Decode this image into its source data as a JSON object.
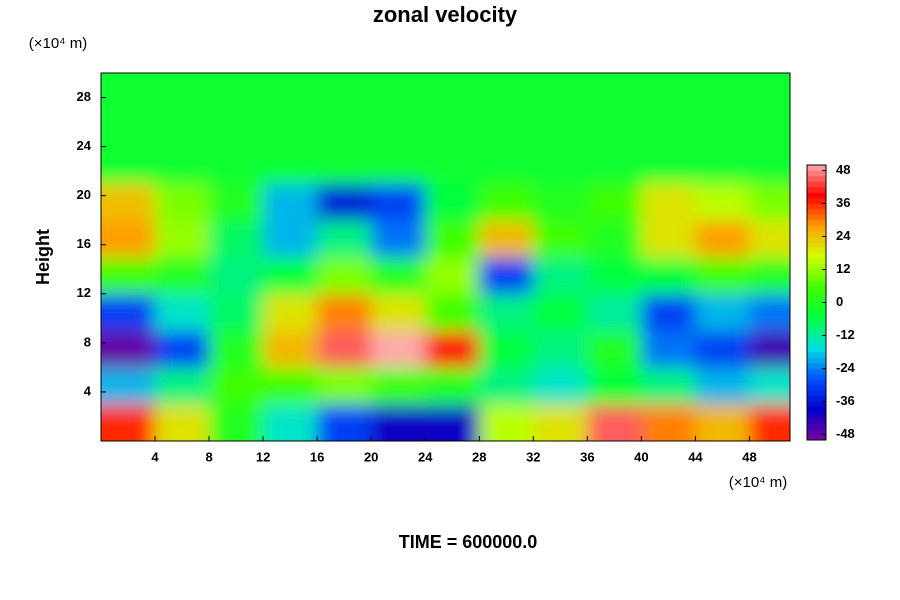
{
  "chart_data": {
    "type": "heatmap",
    "title": "zonal velocity",
    "y_unit": "(×10⁴ m)",
    "x_unit": "(×10⁴ m)",
    "y_label": "Height",
    "footer": "TIME = 600000.0",
    "x": [
      2,
      6,
      10,
      14,
      18,
      22,
      26,
      30,
      34,
      38,
      42,
      46,
      50
    ],
    "y": [
      1.5,
      4.5,
      7.5,
      10.5,
      13.5,
      16.5,
      19.5,
      22.5,
      25.5,
      28.5
    ],
    "z": [
      [
        36,
        20,
        0,
        -15,
        -30,
        -40,
        -40,
        15,
        20,
        45,
        30,
        25,
        36
      ],
      [
        -20,
        -10,
        5,
        5,
        10,
        5,
        0,
        -10,
        -15,
        -5,
        -10,
        -20,
        -15
      ],
      [
        -48,
        -30,
        0,
        25,
        45,
        52,
        40,
        -5,
        -10,
        0,
        -25,
        -30,
        -45
      ],
      [
        -30,
        -15,
        -8,
        20,
        30,
        20,
        5,
        -10,
        -5,
        -12,
        -30,
        -20,
        -25
      ],
      [
        5,
        0,
        -10,
        -5,
        10,
        0,
        12,
        -30,
        -10,
        -5,
        -5,
        5,
        0
      ],
      [
        28,
        12,
        -8,
        -20,
        -10,
        -25,
        5,
        25,
        5,
        0,
        20,
        28,
        20
      ],
      [
        24,
        10,
        0,
        -20,
        -36,
        -30,
        -5,
        5,
        0,
        5,
        20,
        15,
        10
      ],
      [
        -3,
        -3,
        -3,
        -3,
        -3,
        -3,
        -3,
        -3,
        -3,
        -3,
        -3,
        -3,
        -3
      ],
      [
        -3,
        -3,
        -3,
        -3,
        -3,
        -3,
        -3,
        -3,
        -3,
        -3,
        -3,
        -3,
        -3
      ],
      [
        -3,
        -3,
        -3,
        -3,
        -3,
        -3,
        -3,
        -3,
        -3,
        -3,
        -3,
        -3,
        -3
      ]
    ],
    "xlim": [
      0,
      51
    ],
    "ylim": [
      0,
      30
    ],
    "xticks": [
      4,
      8,
      12,
      16,
      20,
      24,
      28,
      32,
      36,
      40,
      44,
      48
    ],
    "yticks": [
      4,
      8,
      12,
      16,
      20,
      24,
      28
    ],
    "clim": [
      -50,
      50
    ],
    "cticks": [
      -48,
      -36,
      -24,
      -12,
      0,
      12,
      24,
      36,
      48
    ],
    "colormap": [
      "#7a00a0",
      "#0000c8",
      "#0050ff",
      "#00e0e0",
      "#00ff40",
      "#40ff00",
      "#d0ff00",
      "#ffa000",
      "#ff0000",
      "#ffa8a8"
    ]
  }
}
